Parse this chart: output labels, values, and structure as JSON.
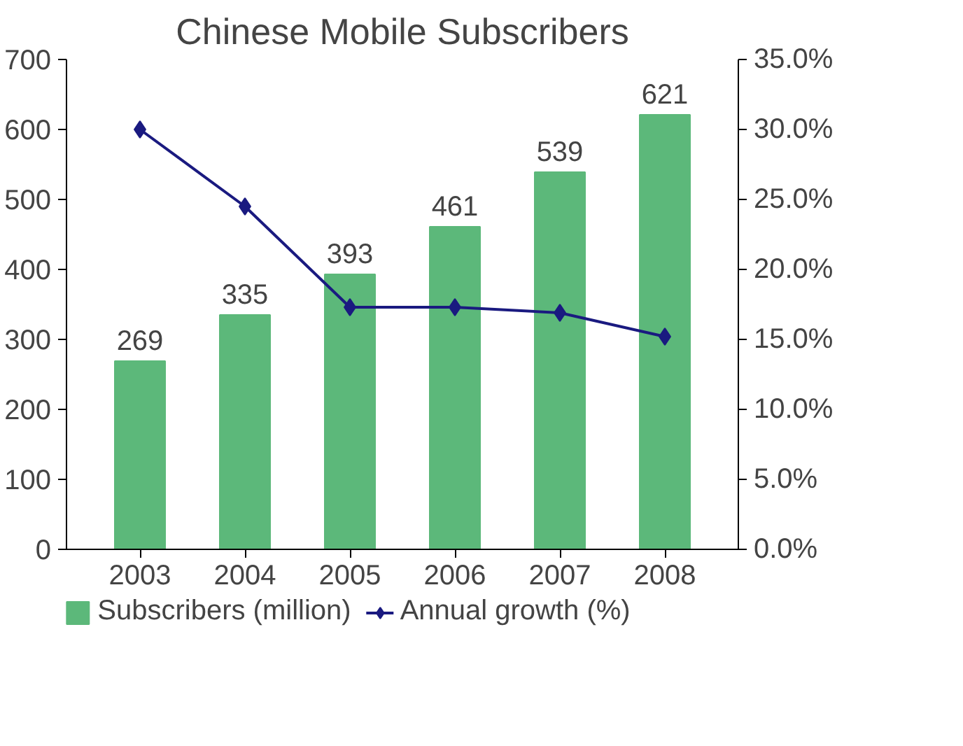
{
  "chart_data": {
    "type": "bar",
    "title": "Chinese Mobile Subscribers",
    "categories": [
      "2003",
      "2004",
      "2005",
      "2006",
      "2007",
      "2008"
    ],
    "series": [
      {
        "name": "Subscribers (million)",
        "color": "#5cb87a",
        "values": [
          269,
          335,
          393,
          461,
          539,
          621
        ],
        "value_labels": [
          "269",
          "335",
          "393",
          "461",
          "539",
          "621"
        ]
      },
      {
        "name": "Annual growth (%)",
        "type": "line",
        "axis": "y2",
        "color": "#1a1a80",
        "marker": "diamond",
        "values": [
          30.0,
          24.5,
          17.3,
          17.3,
          16.9,
          15.2
        ]
      }
    ],
    "ylim": [
      0,
      700
    ],
    "yticks": [
      0,
      100,
      200,
      300,
      400,
      500,
      600,
      700
    ],
    "y2lim": [
      0,
      35
    ],
    "y2ticks": [
      {
        "value": 0,
        "label": "0.0%"
      },
      {
        "value": 5,
        "label": "5.0%"
      },
      {
        "value": 10,
        "label": "10.0%"
      },
      {
        "value": 15,
        "label": "15.0%"
      },
      {
        "value": 20,
        "label": "20.0%"
      },
      {
        "value": 25,
        "label": "25.0%"
      },
      {
        "value": 30,
        "label": "30.0%"
      },
      {
        "value": 35,
        "label": "35.0%"
      }
    ],
    "grid": false,
    "legend": "bottom"
  }
}
